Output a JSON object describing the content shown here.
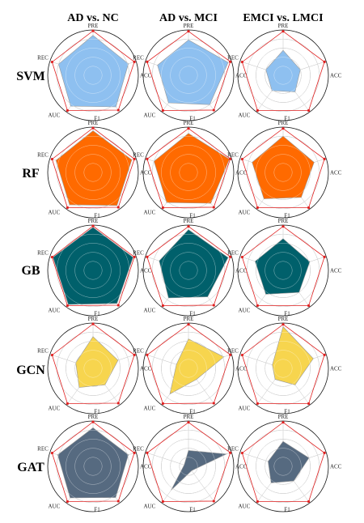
{
  "colors": {
    "reference": "#e02020",
    "SVM": "#8ec0f0",
    "RF": "#ff6a00",
    "GB": "#00606b",
    "GCN": "#f7d54e",
    "GAT": "#566a80"
  },
  "axes": [
    "PRE",
    "ACC",
    "F1",
    "AUC",
    "REC"
  ],
  "chart_data": {
    "type": "radar",
    "columns": [
      "AD vs. NC",
      "AD vs. MCI",
      "EMCI vs. LMCI"
    ],
    "rows": [
      "SVM",
      "RF",
      "GB",
      "GCN",
      "GAT"
    ],
    "axes": [
      "PRE",
      "ACC",
      "F1",
      "AUC",
      "REC"
    ],
    "rmax": 1.0,
    "reference": [
      [
        0.98,
        0.96,
        0.95,
        0.96,
        0.95
      ],
      [
        0.97,
        0.97,
        0.95,
        0.96,
        0.96
      ],
      [
        0.97,
        0.96,
        0.96,
        0.96,
        0.95
      ]
    ],
    "panels": [
      {
        "row": "SVM",
        "column": "AD vs. NC",
        "values": [
          0.88,
          0.82,
          0.86,
          0.84,
          0.8
        ]
      },
      {
        "row": "SVM",
        "column": "AD vs. MCI",
        "values": [
          0.78,
          0.92,
          0.8,
          0.75,
          0.72
        ]
      },
      {
        "row": "SVM",
        "column": "EMCI vs. LMCI",
        "values": [
          0.55,
          0.4,
          0.45,
          0.42,
          0.4
        ]
      },
      {
        "row": "RF",
        "column": "AD vs. NC",
        "values": [
          0.92,
          0.9,
          0.9,
          0.88,
          0.86
        ]
      },
      {
        "row": "RF",
        "column": "AD vs. MCI",
        "values": [
          0.86,
          0.95,
          0.84,
          0.82,
          0.8
        ]
      },
      {
        "row": "RF",
        "column": "EMCI vs. LMCI",
        "values": [
          0.8,
          0.72,
          0.68,
          0.72,
          0.72
        ]
      },
      {
        "row": "GB",
        "column": "AD vs. NC",
        "values": [
          0.95,
          0.93,
          0.9,
          0.93,
          0.93
        ]
      },
      {
        "row": "GB",
        "column": "AD vs. MCI",
        "values": [
          0.9,
          0.92,
          0.72,
          0.75,
          0.68
        ]
      },
      {
        "row": "GB",
        "column": "EMCI vs. LMCI",
        "values": [
          0.7,
          0.62,
          0.6,
          0.65,
          0.65
        ]
      },
      {
        "row": "GCN",
        "column": "AD vs. NC",
        "values": [
          0.7,
          0.58,
          0.45,
          0.52,
          0.4
        ]
      },
      {
        "row": "GCN",
        "column": "AD vs. MCI",
        "values": [
          0.65,
          0.82,
          0.3,
          0.7,
          0.28
        ]
      },
      {
        "row": "GCN",
        "column": "EMCI vs. LMCI",
        "values": [
          0.92,
          0.7,
          0.45,
          0.3,
          0.25
        ]
      },
      {
        "row": "GAT",
        "column": "AD vs. NC",
        "values": [
          0.85,
          0.82,
          0.85,
          0.86,
          0.82
        ]
      },
      {
        "row": "GAT",
        "column": "AD vs. MCI",
        "values": [
          0.35,
          0.88,
          0.12,
          0.65,
          0.1
        ]
      },
      {
        "row": "GAT",
        "column": "EMCI vs. LMCI",
        "values": [
          0.55,
          0.6,
          0.4,
          0.45,
          0.35
        ]
      }
    ]
  }
}
